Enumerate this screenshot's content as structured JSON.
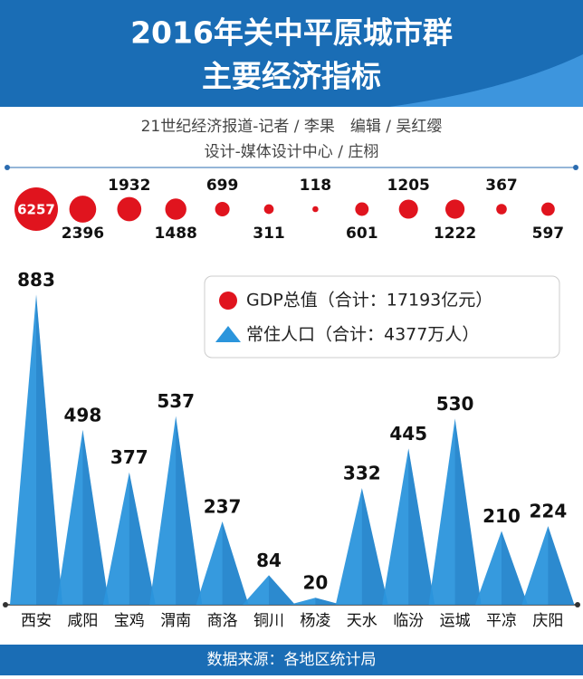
{
  "chart_data": {
    "type": "triangle-bubble",
    "title": [
      "2016年关中平原城市群",
      "主要经济指标"
    ],
    "subtitle": [
      "21世纪经济报道-记者 / 李果　编辑 / 吴红缨",
      "设计-媒体设计中心 / 庄栩"
    ],
    "categories": [
      "西安",
      "咸阳",
      "宝鸡",
      "渭南",
      "商洛",
      "铜川",
      "杨凌",
      "天水",
      "临汾",
      "运城",
      "平凉",
      "庆阳"
    ],
    "series": [
      {
        "name": "GDP总值（合计：17193亿元）",
        "color": "#e0141e",
        "values": [
          6257,
          2396,
          1932,
          1488,
          699,
          311,
          118,
          601,
          1205,
          1222,
          367,
          597
        ]
      },
      {
        "name": "常住人口（合计：4377万人）",
        "color": "#2b95dc",
        "values": [
          883,
          498,
          377,
          537,
          237,
          84,
          20,
          332,
          445,
          530,
          210,
          224
        ]
      }
    ],
    "source": "数据来源：各地区统计局"
  }
}
